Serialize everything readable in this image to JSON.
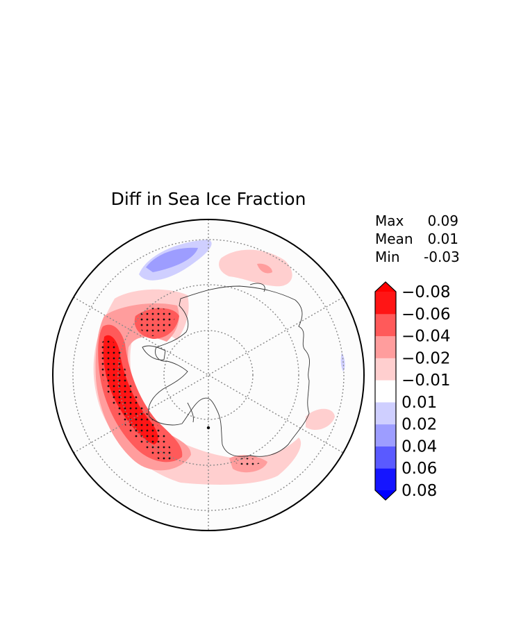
{
  "title": "Diff in Sea Ice Fraction",
  "stats": [
    {
      "label": "Max",
      "value": "0.09"
    },
    {
      "label": "Mean",
      "value": "0.01"
    },
    {
      "label": "Min",
      "value": "-0.03"
    }
  ],
  "colorbar": {
    "levels": [
      {
        "color": "#1515ff"
      },
      {
        "color": "#5a5aff"
      },
      {
        "color": "#9d9dff"
      },
      {
        "color": "#cfcfff"
      },
      {
        "color": "#ffffff"
      },
      {
        "color": "#ffcfcf"
      },
      {
        "color": "#ff9d9d"
      },
      {
        "color": "#ff5a5a"
      },
      {
        "color": "#ff1515"
      }
    ],
    "under_color": "#0000ff",
    "over_color": "#ff0000",
    "ticks": [
      "−0.08",
      "−0.06",
      "−0.04",
      "−0.02",
      "−0.01",
      "0.01",
      "0.02",
      "0.04",
      "0.06",
      "0.08"
    ]
  },
  "map": {
    "projection": "south-polar-stereographic",
    "region": "Antarctica / Southern Ocean",
    "graticule": "dotted",
    "stippling": "significance dots"
  }
}
